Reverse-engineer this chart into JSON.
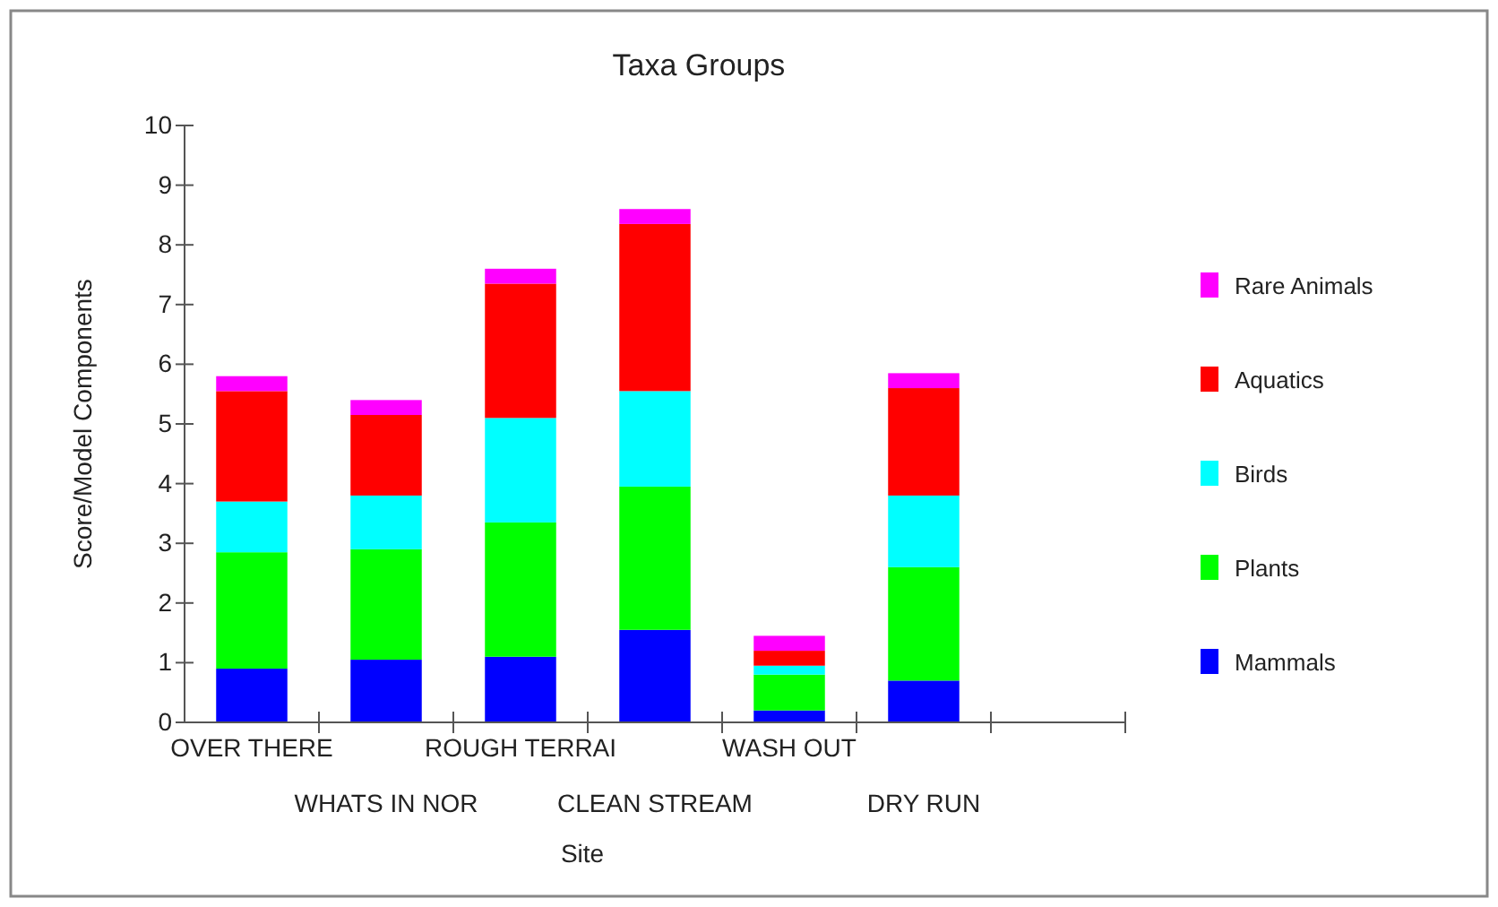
{
  "chart_data": {
    "type": "bar",
    "title": "Taxa Groups",
    "xlabel": "Site",
    "ylabel": "Score/Model Components",
    "categories": [
      "OVER THERE",
      "WHATS IN NOR",
      "ROUGH TERRAI",
      "CLEAN STREAM",
      "WASH OUT",
      "DRY RUN",
      null
    ],
    "stacked": true,
    "legend": "right",
    "grid": false,
    "ylim": [
      0,
      10
    ],
    "yticks": [
      0,
      1,
      2,
      3,
      4,
      5,
      6,
      7,
      8,
      9,
      10
    ],
    "series": [
      {
        "name": "Mammals",
        "color": "#0000ff",
        "values": [
          0.9,
          1.05,
          1.1,
          1.55,
          0.2,
          0.7,
          null
        ]
      },
      {
        "name": "Plants",
        "color": "#00ff00",
        "values": [
          1.95,
          1.85,
          2.25,
          2.4,
          0.6,
          1.9,
          null
        ]
      },
      {
        "name": "Birds",
        "color": "#00ffff",
        "values": [
          0.85,
          0.9,
          1.75,
          1.6,
          0.15,
          1.2,
          null
        ]
      },
      {
        "name": "Aquatics",
        "color": "#ff0000",
        "values": [
          1.85,
          1.35,
          2.25,
          2.8,
          0.25,
          1.8,
          null
        ]
      },
      {
        "name": "Rare Animals",
        "color": "#ff00ff",
        "values": [
          0.25,
          0.25,
          0.25,
          0.25,
          0.25,
          0.25,
          null
        ]
      }
    ]
  }
}
